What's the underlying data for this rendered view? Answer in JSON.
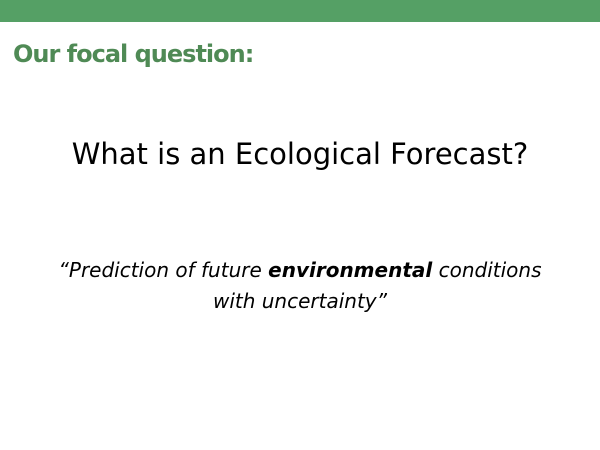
{
  "slide": {
    "heading": "Our focal question:",
    "title": "What is an Ecological Forecast?",
    "quote": {
      "line1_before": "“Prediction of future ",
      "line1_emphasis": "environmental",
      "line1_after": " conditions",
      "line2": "with uncertainty”"
    }
  },
  "colors": {
    "accent_bar": "#55a065",
    "heading": "#4f8a55",
    "text": "#000000",
    "background": "#ffffff"
  }
}
